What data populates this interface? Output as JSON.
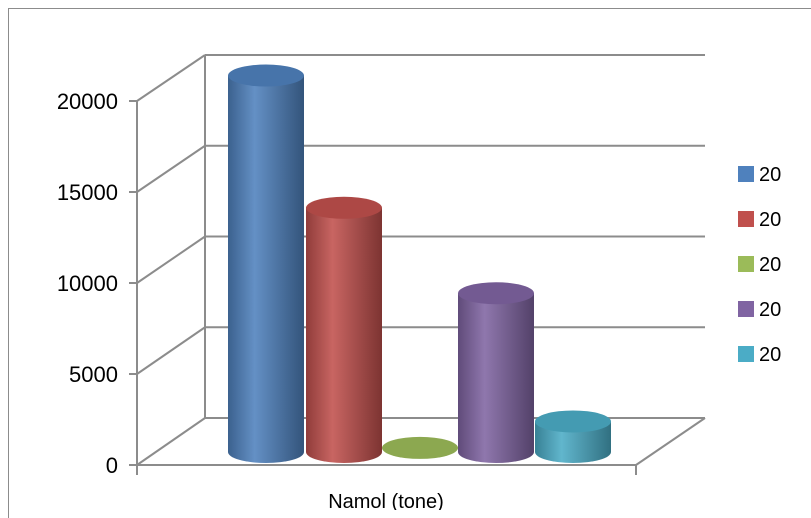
{
  "chart_data": {
    "type": "bar",
    "style": "3d-cylinder",
    "categories": [
      "Namol (tone)"
    ],
    "series": [
      {
        "name": "20",
        "values": [
          18500
        ],
        "color": "#4f81bd"
      },
      {
        "name": "20",
        "values": [
          12000
        ],
        "color": "#c0504d"
      },
      {
        "name": "20",
        "values": [
          200
        ],
        "color": "#9bbb59"
      },
      {
        "name": "20",
        "values": [
          7800
        ],
        "color": "#8064a2"
      },
      {
        "name": "20",
        "values": [
          1500
        ],
        "color": "#4bacc6"
      }
    ],
    "title": "",
    "xlabel": "Namol (tone)",
    "ylabel": "",
    "ylim": [
      0,
      20000
    ],
    "yticks": [
      "0",
      "5000",
      "10000",
      "15000",
      "20000"
    ],
    "grid": true,
    "legend_position": "right"
  }
}
